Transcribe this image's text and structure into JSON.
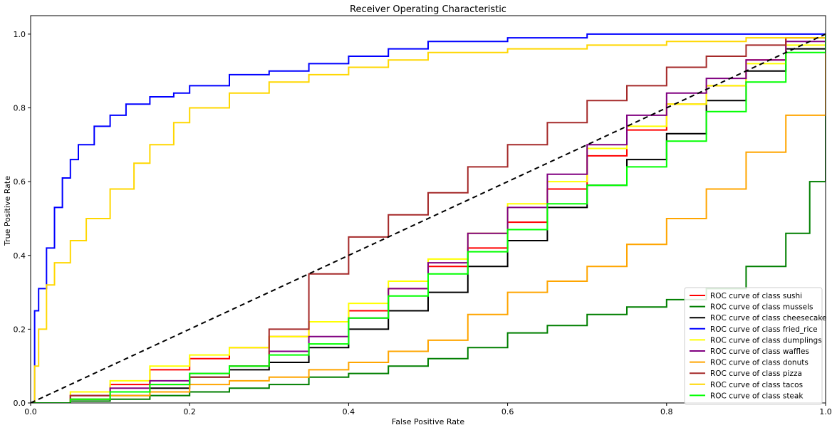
{
  "chart_data": {
    "type": "line",
    "title": "Receiver Operating Characteristic",
    "xlabel": "False Positive Rate",
    "ylabel": "True Positive Rate",
    "xlim": [
      0,
      1
    ],
    "ylim": [
      0,
      1.05
    ],
    "xticks": [
      "0.0",
      "0.2",
      "0.4",
      "0.6",
      "0.8",
      "1.0"
    ],
    "yticks": [
      "0.0",
      "0.2",
      "0.4",
      "0.6",
      "0.8",
      "1.0"
    ],
    "grid": false,
    "legend_position": "lower-right",
    "diagonal": {
      "x": [
        0,
        1
      ],
      "y": [
        0,
        1
      ],
      "color": "#000000",
      "style": "dashed"
    },
    "series": [
      {
        "name": "ROC curve of class sushi",
        "color": "#ff0000",
        "x": [
          0,
          0.05,
          0.1,
          0.15,
          0.2,
          0.25,
          0.3,
          0.35,
          0.4,
          0.45,
          0.5,
          0.55,
          0.6,
          0.65,
          0.7,
          0.75,
          0.8,
          0.85,
          0.9,
          0.95,
          1.0
        ],
        "y": [
          0,
          0.02,
          0.05,
          0.09,
          0.12,
          0.15,
          0.18,
          0.22,
          0.25,
          0.31,
          0.37,
          0.42,
          0.49,
          0.58,
          0.67,
          0.74,
          0.81,
          0.86,
          0.93,
          0.99,
          1.0
        ]
      },
      {
        "name": "ROC curve of class mussels",
        "color": "#007f00",
        "x": [
          0,
          0.05,
          0.1,
          0.15,
          0.2,
          0.25,
          0.3,
          0.35,
          0.4,
          0.45,
          0.5,
          0.55,
          0.6,
          0.65,
          0.7,
          0.75,
          0.8,
          0.85,
          0.9,
          0.95,
          0.98,
          1.0
        ],
        "y": [
          0,
          0.005,
          0.01,
          0.02,
          0.03,
          0.04,
          0.05,
          0.07,
          0.08,
          0.1,
          0.12,
          0.15,
          0.19,
          0.21,
          0.24,
          0.26,
          0.28,
          0.31,
          0.37,
          0.46,
          0.6,
          1.0
        ]
      },
      {
        "name": "ROC curve of class cheesecake",
        "color": "#000000",
        "x": [
          0,
          0.05,
          0.1,
          0.15,
          0.2,
          0.25,
          0.3,
          0.35,
          0.4,
          0.45,
          0.5,
          0.55,
          0.6,
          0.65,
          0.7,
          0.75,
          0.8,
          0.85,
          0.9,
          0.95,
          1.0
        ],
        "y": [
          0,
          0.01,
          0.02,
          0.04,
          0.07,
          0.09,
          0.11,
          0.15,
          0.2,
          0.25,
          0.3,
          0.37,
          0.44,
          0.53,
          0.59,
          0.66,
          0.73,
          0.82,
          0.9,
          0.96,
          1.0
        ]
      },
      {
        "name": "ROC curve of class fried_rice",
        "color": "#0000ff",
        "x": [
          0,
          0.005,
          0.01,
          0.02,
          0.03,
          0.04,
          0.05,
          0.06,
          0.08,
          0.1,
          0.12,
          0.15,
          0.18,
          0.2,
          0.25,
          0.3,
          0.35,
          0.4,
          0.45,
          0.5,
          0.6,
          0.7,
          0.8,
          0.9,
          1.0
        ],
        "y": [
          0,
          0.25,
          0.31,
          0.42,
          0.53,
          0.61,
          0.66,
          0.7,
          0.75,
          0.78,
          0.81,
          0.83,
          0.84,
          0.86,
          0.89,
          0.9,
          0.92,
          0.94,
          0.96,
          0.98,
          0.99,
          1.0,
          1.0,
          1.0,
          1.0
        ]
      },
      {
        "name": "ROC curve of class dumplings",
        "color": "#ffff00",
        "x": [
          0,
          0.05,
          0.1,
          0.15,
          0.2,
          0.25,
          0.3,
          0.35,
          0.4,
          0.45,
          0.5,
          0.55,
          0.6,
          0.65,
          0.7,
          0.75,
          0.8,
          0.85,
          0.9,
          0.95,
          1.0
        ],
        "y": [
          0,
          0.03,
          0.06,
          0.1,
          0.13,
          0.15,
          0.18,
          0.22,
          0.27,
          0.33,
          0.39,
          0.46,
          0.54,
          0.6,
          0.69,
          0.75,
          0.81,
          0.86,
          0.92,
          0.97,
          1.0
        ]
      },
      {
        "name": "ROC curve of class waffles",
        "color": "#800080",
        "x": [
          0,
          0.05,
          0.1,
          0.15,
          0.2,
          0.25,
          0.3,
          0.35,
          0.4,
          0.45,
          0.5,
          0.55,
          0.6,
          0.65,
          0.7,
          0.75,
          0.8,
          0.85,
          0.9,
          0.95,
          1.0
        ],
        "y": [
          0,
          0.02,
          0.04,
          0.06,
          0.08,
          0.1,
          0.14,
          0.18,
          0.23,
          0.31,
          0.38,
          0.46,
          0.53,
          0.62,
          0.7,
          0.78,
          0.84,
          0.88,
          0.93,
          0.98,
          1.0
        ]
      },
      {
        "name": "ROC curve of class donuts",
        "color": "#ffa500",
        "x": [
          0,
          0.05,
          0.1,
          0.15,
          0.2,
          0.25,
          0.3,
          0.35,
          0.4,
          0.45,
          0.5,
          0.55,
          0.6,
          0.65,
          0.7,
          0.75,
          0.8,
          0.85,
          0.9,
          0.95,
          1.0
        ],
        "y": [
          0,
          0.01,
          0.02,
          0.03,
          0.05,
          0.06,
          0.07,
          0.09,
          0.11,
          0.14,
          0.17,
          0.24,
          0.3,
          0.33,
          0.37,
          0.43,
          0.5,
          0.58,
          0.68,
          0.78,
          1.0
        ]
      },
      {
        "name": "ROC curve of class pizza",
        "color": "#a52a2a",
        "x": [
          0,
          0.05,
          0.1,
          0.15,
          0.2,
          0.25,
          0.3,
          0.35,
          0.4,
          0.45,
          0.5,
          0.55,
          0.6,
          0.65,
          0.7,
          0.75,
          0.8,
          0.85,
          0.9,
          0.95,
          1.0
        ],
        "y": [
          0,
          0.02,
          0.03,
          0.05,
          0.07,
          0.1,
          0.2,
          0.35,
          0.45,
          0.51,
          0.57,
          0.64,
          0.7,
          0.76,
          0.82,
          0.86,
          0.91,
          0.94,
          0.97,
          0.99,
          1.0
        ]
      },
      {
        "name": "ROC curve of class tacos",
        "color": "#ffd700",
        "x": [
          0,
          0.005,
          0.01,
          0.02,
          0.03,
          0.05,
          0.07,
          0.1,
          0.13,
          0.15,
          0.18,
          0.2,
          0.25,
          0.3,
          0.35,
          0.4,
          0.45,
          0.5,
          0.6,
          0.7,
          0.8,
          0.9,
          1.0
        ],
        "y": [
          0,
          0.1,
          0.2,
          0.32,
          0.38,
          0.44,
          0.5,
          0.58,
          0.65,
          0.7,
          0.76,
          0.8,
          0.84,
          0.87,
          0.89,
          0.91,
          0.93,
          0.95,
          0.96,
          0.97,
          0.98,
          0.99,
          1.0
        ]
      },
      {
        "name": "ROC curve of class steak",
        "color": "#00ff00",
        "x": [
          0,
          0.05,
          0.1,
          0.15,
          0.2,
          0.25,
          0.3,
          0.35,
          0.4,
          0.45,
          0.5,
          0.55,
          0.6,
          0.65,
          0.7,
          0.75,
          0.8,
          0.85,
          0.9,
          0.95,
          1.0
        ],
        "y": [
          0,
          0.01,
          0.03,
          0.05,
          0.08,
          0.1,
          0.13,
          0.16,
          0.23,
          0.29,
          0.35,
          0.41,
          0.47,
          0.54,
          0.59,
          0.64,
          0.71,
          0.79,
          0.87,
          0.95,
          1.0
        ]
      }
    ]
  }
}
